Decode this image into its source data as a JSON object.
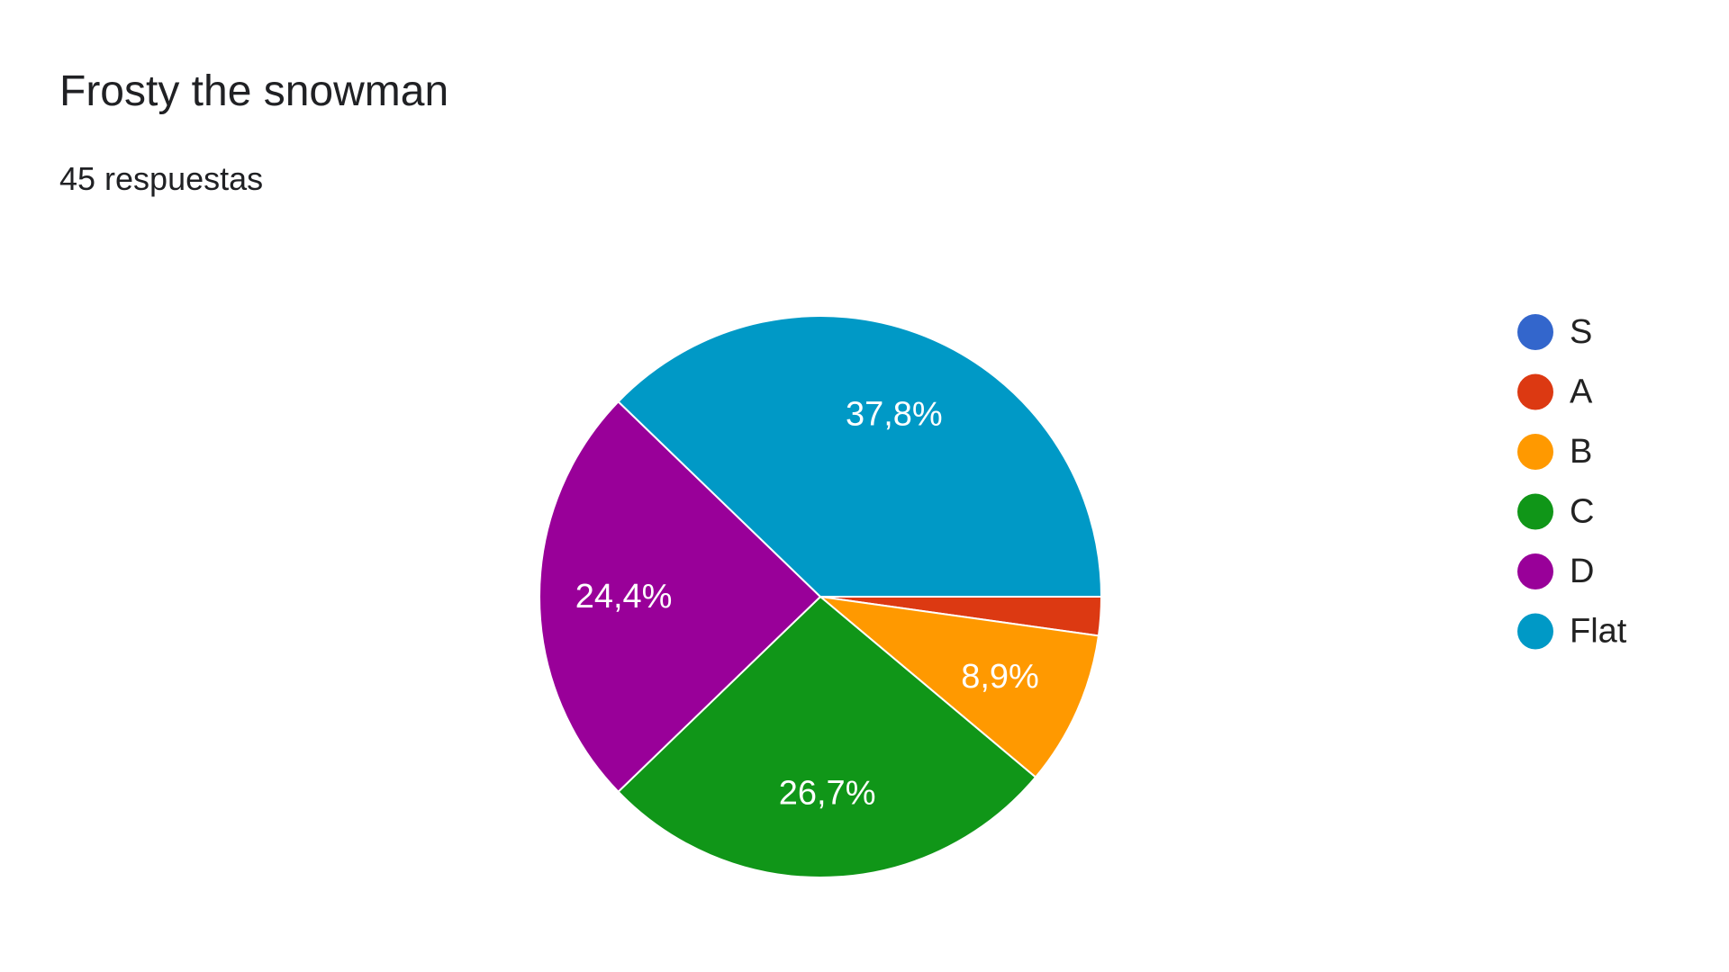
{
  "chart_data": {
    "type": "pie",
    "title": "Frosty the snowman",
    "subtitle": "45 respuestas",
    "categories": [
      "S",
      "A",
      "B",
      "C",
      "D",
      "Flat"
    ],
    "values": [
      0,
      1,
      4,
      12,
      11,
      17
    ],
    "data_labels": [
      "",
      "",
      "8,9%",
      "26,7%",
      "24,4%",
      "37,8%"
    ],
    "colors": [
      "#3366cc",
      "#dc3912",
      "#ff9900",
      "#109618",
      "#990099",
      "#0099c6"
    ],
    "legend_position": "right"
  }
}
